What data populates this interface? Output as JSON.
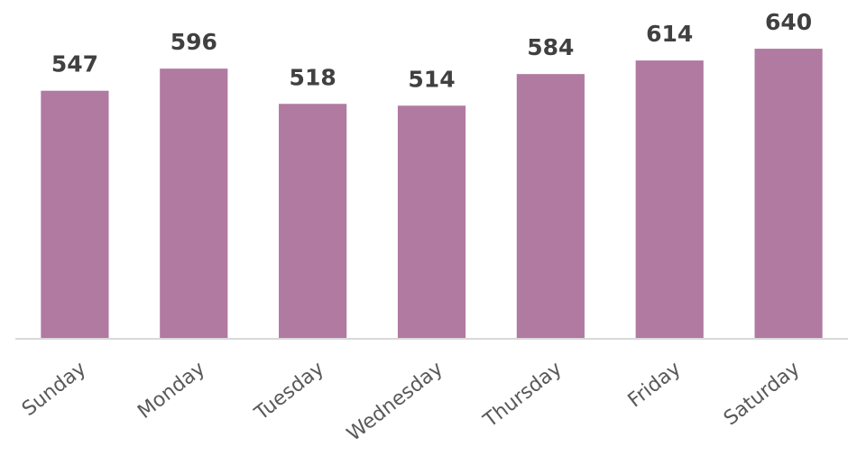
{
  "chart_data": {
    "type": "bar",
    "categories": [
      "Sunday",
      "Monday",
      "Tuesday",
      "Wednesday",
      "Thursday",
      "Friday",
      "Saturday"
    ],
    "values": [
      547,
      596,
      518,
      514,
      584,
      614,
      640
    ],
    "color": "#b07aa1",
    "ylim": [
      0,
      700
    ]
  }
}
